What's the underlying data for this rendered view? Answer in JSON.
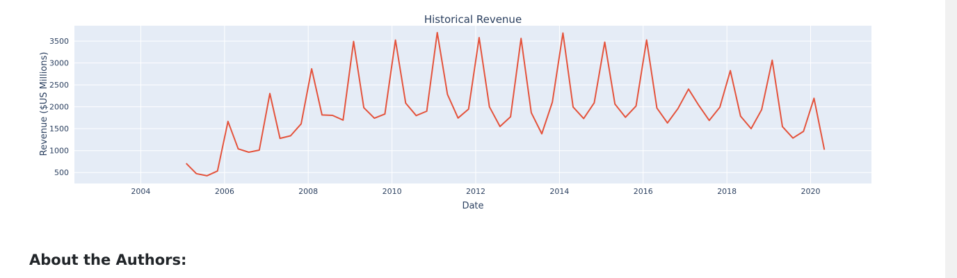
{
  "chart_data": {
    "type": "line",
    "title": "Historical Revenue",
    "xlabel": "Date",
    "ylabel": "Revenue ($US Millions)",
    "x_tick_labels": [
      "2004",
      "2006",
      "2008",
      "2010",
      "2012",
      "2014",
      "2016",
      "2018",
      "2020"
    ],
    "y_tick_labels": [
      "500",
      "1000",
      "1500",
      "2000",
      "2500",
      "3000",
      "3500"
    ],
    "xlim": [
      "2002-06-01",
      "2021-06-15"
    ],
    "ylim": [
      250,
      3850
    ],
    "grid": true,
    "line_color": "#e4523b",
    "plot_bg": "#e5ecf6",
    "series": [
      {
        "x": [
          "2005-01-31",
          "2005-04-30",
          "2005-07-31",
          "2005-10-31",
          "2006-01-31",
          "2006-04-30",
          "2006-07-31",
          "2006-10-31",
          "2007-01-31",
          "2007-04-30",
          "2007-07-31",
          "2007-10-31",
          "2008-01-31",
          "2008-04-30",
          "2008-07-31",
          "2008-10-31",
          "2009-01-31",
          "2009-04-30",
          "2009-07-31",
          "2009-10-31",
          "2010-01-31",
          "2010-04-30",
          "2010-07-31",
          "2010-10-31",
          "2011-01-31",
          "2011-04-30",
          "2011-07-31",
          "2011-10-31",
          "2012-01-31",
          "2012-04-30",
          "2012-07-31",
          "2012-10-31",
          "2013-01-31",
          "2013-04-30",
          "2013-07-31",
          "2013-10-31",
          "2014-01-31",
          "2014-04-30",
          "2014-07-31",
          "2014-10-31",
          "2015-01-31",
          "2015-04-30",
          "2015-07-31",
          "2015-10-31",
          "2016-01-31",
          "2016-04-30",
          "2016-07-31",
          "2016-10-31",
          "2017-01-31",
          "2017-04-30",
          "2017-07-31",
          "2017-10-31",
          "2018-01-31",
          "2018-04-30",
          "2018-07-31",
          "2018-10-31",
          "2019-01-31",
          "2019-04-30",
          "2019-07-31",
          "2019-10-31",
          "2020-01-31",
          "2020-04-30"
        ],
        "values": [
          709,
          475,
          426,
          534,
          1667,
          1040,
          963,
          1012,
          2304,
          1279,
          1338,
          1611,
          2866,
          1814,
          1804,
          1696,
          3492,
          1981,
          1739,
          1835,
          3524,
          2083,
          1799,
          1899,
          3693,
          2281,
          1744,
          1947,
          3579,
          1999,
          1550,
          1772,
          3562,
          1865,
          1384,
          2107,
          3684,
          1996,
          1731,
          2092,
          3476,
          2061,
          1762,
          2016,
          3525,
          1972,
          1632,
          1959,
          2403,
          2032,
          1688,
          1990,
          2825,
          1786,
          1501,
          1935,
          3063,
          1548,
          1286,
          1439,
          2194,
          1021
        ]
      }
    ]
  },
  "about": {
    "heading": "About the Authors:"
  }
}
